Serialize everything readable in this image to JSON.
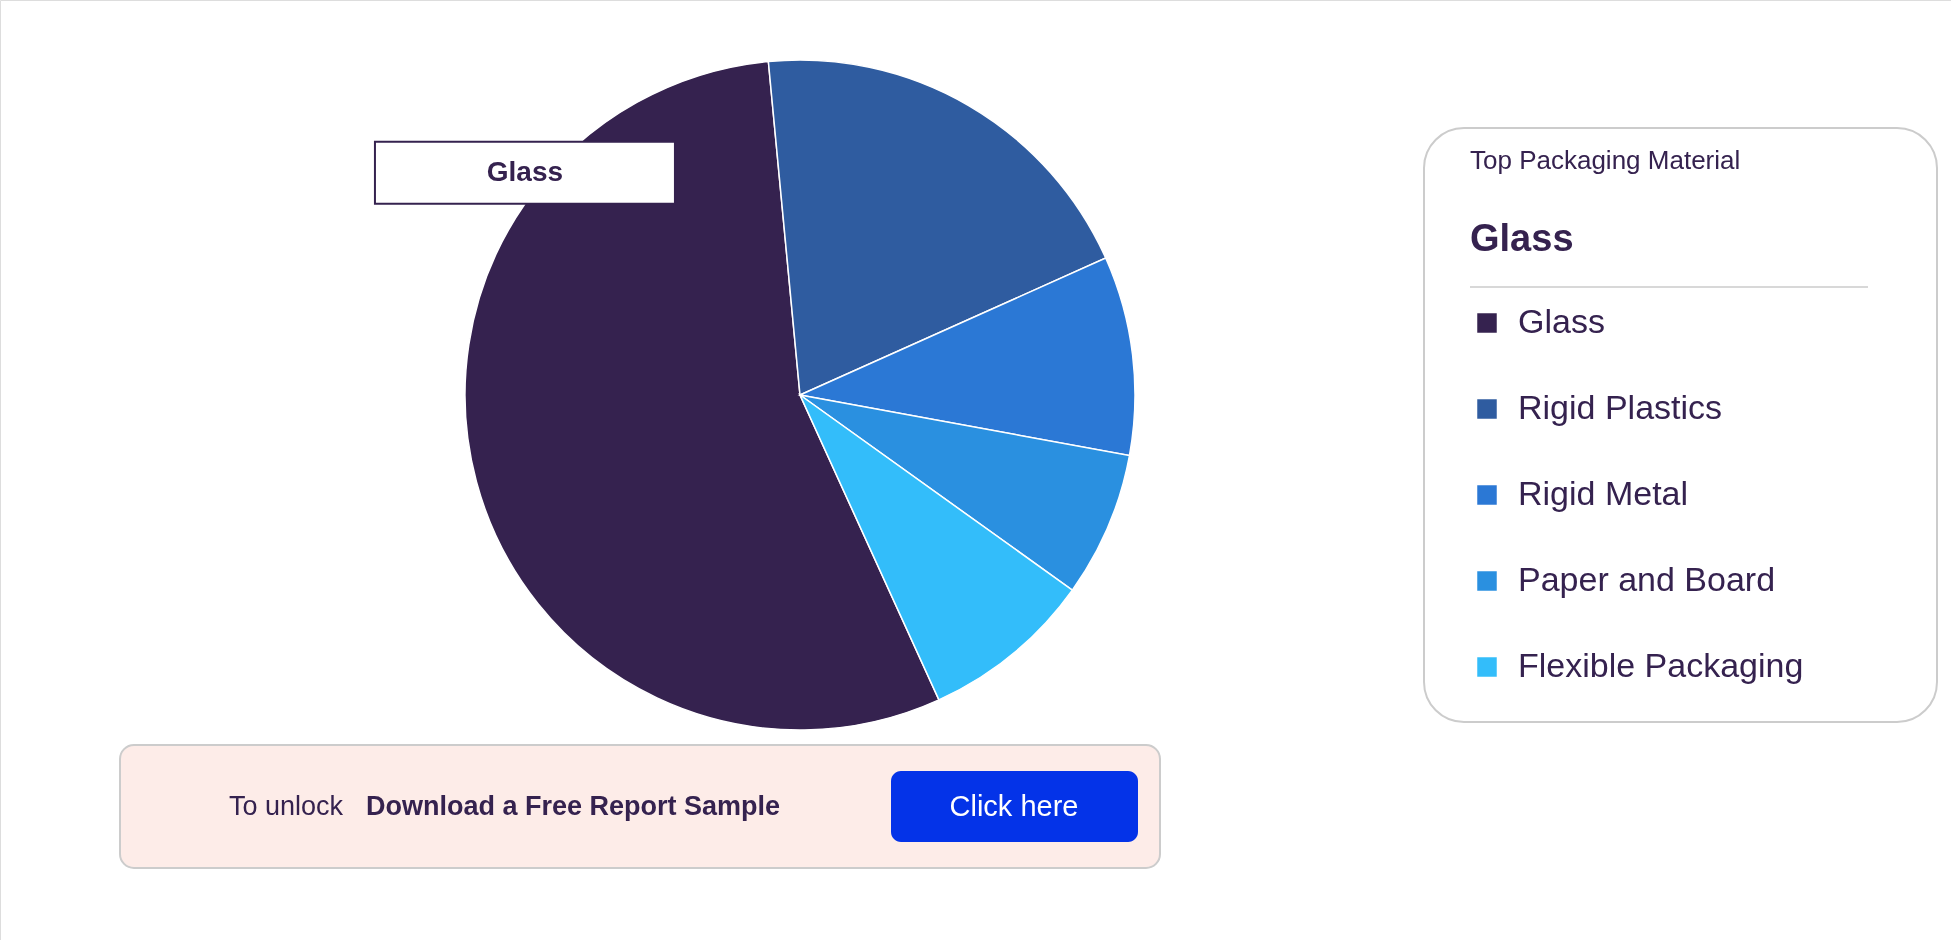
{
  "chart_data": {
    "type": "pie",
    "categories": [
      "Glass",
      "Rigid Plastics",
      "Rigid Metal",
      "Paper and Board",
      "Flexible Packaging"
    ],
    "values": [
      55.3,
      19.8,
      9.6,
      7.0,
      8.3
    ],
    "colors": [
      "#35224f",
      "#2f5ca0",
      "#2b78d5",
      "#2a90e0",
      "#33bdfa"
    ],
    "legend": "right",
    "legend_title": "Top Packaging Material",
    "annotations": [
      {
        "text": "Glass",
        "x": "Glass"
      },
      "Glass",
      "To unlock",
      "Download a Free Report Sample",
      "Click here"
    ]
  }
}
